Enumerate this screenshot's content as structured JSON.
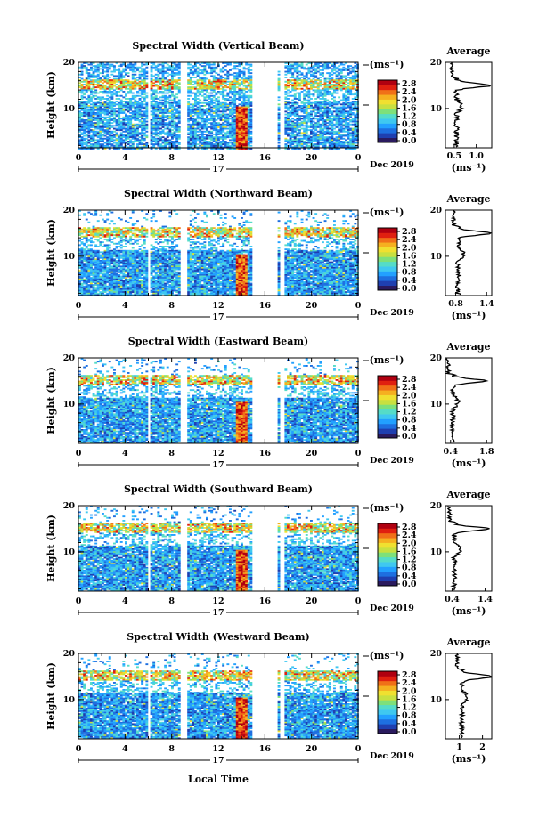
{
  "x_axis_label": "Local Time",
  "day_label": "17",
  "date_label": "Dec 2019",
  "y_axis_label": "Height (km)",
  "colorbar_unit": "(ms⁻¹)",
  "avg_title": "Average",
  "avg_unit": "(ms⁻¹)",
  "colors": {
    "scale": [
      "#2a1a5e",
      "#1f3fb0",
      "#1e6fe0",
      "#22a0ff",
      "#3fc8f0",
      "#55dcc8",
      "#7ee07a",
      "#c8e040",
      "#f0e030",
      "#f5b020",
      "#f07018",
      "#e02010",
      "#b00010"
    ]
  },
  "chart_data": [
    {
      "type": "heatmap",
      "title": "Spectral Width (Vertical Beam)",
      "ylim": [
        1.5,
        20
      ],
      "xlim": [
        0,
        24
      ],
      "xticks": [
        "0",
        "4",
        "8",
        "12",
        "16",
        "20",
        "0"
      ],
      "yticks": [
        "10",
        "20"
      ],
      "colorbar_ticks": [
        "0.0",
        "0.4",
        "0.8",
        "1.2",
        "1.6",
        "2.0",
        "2.4",
        "2.8"
      ],
      "gaps_hours": [
        [
          5.8,
          6.0
        ],
        [
          8.7,
          9.3
        ],
        [
          14.9,
          16.9
        ],
        [
          16.9,
          17.0
        ],
        [
          17.2,
          17.6
        ]
      ],
      "average_profile": {
        "xticks": [
          "0.5",
          "1.0"
        ],
        "xlim": [
          0.3,
          1.35
        ],
        "peak_height_km": 15.0
      }
    },
    {
      "type": "heatmap",
      "title": "Spectral Width (Northward Beam)",
      "ylim": [
        1.5,
        20
      ],
      "xlim": [
        0,
        24
      ],
      "xticks": [
        "0",
        "4",
        "8",
        "12",
        "16",
        "20",
        "0"
      ],
      "yticks": [
        "10",
        "20"
      ],
      "colorbar_ticks": [
        "0.0",
        "0.4",
        "0.8",
        "1.2",
        "1.6",
        "2.0",
        "2.4",
        "2.8"
      ],
      "gaps_hours": [
        [
          5.8,
          6.0
        ],
        [
          8.7,
          9.3
        ],
        [
          14.9,
          16.9
        ],
        [
          16.9,
          17.0
        ],
        [
          17.2,
          17.6
        ]
      ],
      "average_profile": {
        "xticks": [
          "0.8",
          "1.4"
        ],
        "xlim": [
          0.6,
          1.5
        ],
        "peak_height_km": 15.0
      }
    },
    {
      "type": "heatmap",
      "title": "Spectral Width (Eastward Beam)",
      "ylim": [
        1.5,
        20
      ],
      "xlim": [
        0,
        24
      ],
      "xticks": [
        "0",
        "4",
        "8",
        "12",
        "16",
        "20",
        "0"
      ],
      "yticks": [
        "10",
        "20"
      ],
      "colorbar_ticks": [
        "0.0",
        "0.4",
        "0.8",
        "1.2",
        "1.6",
        "2.0",
        "2.4",
        "2.8"
      ],
      "gaps_hours": [
        [
          5.8,
          6.0
        ],
        [
          8.7,
          9.3
        ],
        [
          14.9,
          16.9
        ],
        [
          16.9,
          17.0
        ],
        [
          17.2,
          17.6
        ]
      ],
      "average_profile": {
        "xticks": [
          "0.4",
          "1.8"
        ],
        "xlim": [
          0.2,
          2.0
        ],
        "peak_height_km": 15.0
      }
    },
    {
      "type": "heatmap",
      "title": "Spectral Width (Southward Beam)",
      "ylim": [
        1.5,
        20
      ],
      "xlim": [
        0,
        24
      ],
      "xticks": [
        "0",
        "4",
        "8",
        "12",
        "16",
        "20",
        "0"
      ],
      "yticks": [
        "10",
        "20"
      ],
      "colorbar_ticks": [
        "0.0",
        "0.4",
        "0.8",
        "1.2",
        "1.6",
        "2.0",
        "2.4",
        "2.8"
      ],
      "gaps_hours": [
        [
          5.8,
          6.0
        ],
        [
          8.7,
          9.3
        ],
        [
          14.9,
          16.9
        ],
        [
          16.9,
          17.0
        ],
        [
          17.2,
          17.6
        ]
      ],
      "average_profile": {
        "xticks": [
          "0.4",
          "1.4"
        ],
        "xlim": [
          0.2,
          1.6
        ],
        "peak_height_km": 15.0
      }
    },
    {
      "type": "heatmap",
      "title": "Spectral Width (Westward Beam)",
      "ylim": [
        1.5,
        20
      ],
      "xlim": [
        0,
        24
      ],
      "xticks": [
        "0",
        "4",
        "8",
        "12",
        "16",
        "20",
        "0"
      ],
      "yticks": [
        "10",
        "20"
      ],
      "colorbar_ticks": [
        "0.0",
        "0.4",
        "0.8",
        "1.2",
        "1.6",
        "2.0",
        "2.4",
        "2.8"
      ],
      "gaps_hours": [
        [
          5.8,
          6.0
        ],
        [
          8.7,
          9.3
        ],
        [
          14.9,
          16.9
        ],
        [
          16.9,
          17.0
        ],
        [
          17.2,
          17.6
        ]
      ],
      "average_profile": {
        "xticks": [
          "1",
          "2"
        ],
        "xlim": [
          0.4,
          2.4
        ],
        "peak_height_km": 15.0
      }
    }
  ]
}
